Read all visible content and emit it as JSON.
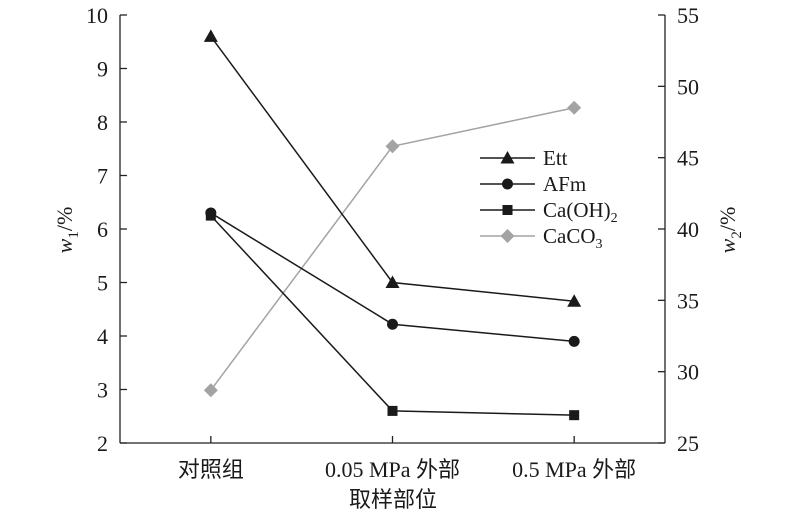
{
  "chart_data": {
    "type": "line",
    "categories": [
      "对照组",
      "0.05 MPa 外部",
      "0.5 MPa 外部"
    ],
    "xlabel": "取样部位",
    "ylabel_left": {
      "var": "w",
      "sub": "1",
      "unit": "/%"
    },
    "ylabel_right": {
      "var": "w",
      "sub": "2",
      "unit": "/%"
    },
    "ylim_left": [
      2,
      10
    ],
    "yticks_left": [
      2,
      3,
      4,
      5,
      6,
      7,
      8,
      9,
      10
    ],
    "ylim_right": [
      25,
      55
    ],
    "yticks_right": [
      25,
      30,
      35,
      40,
      45,
      50,
      55
    ],
    "grid": false,
    "legend_position": "center-right",
    "series": [
      {
        "name": "Ett",
        "axis": "left",
        "marker": "triangle",
        "color": "#1a1a1a",
        "values": [
          9.6,
          5.0,
          4.65
        ]
      },
      {
        "name": "AFm",
        "axis": "left",
        "marker": "circle",
        "color": "#1a1a1a",
        "values": [
          6.3,
          4.22,
          3.9
        ]
      },
      {
        "name": "Ca(OH)",
        "name_sub": "2",
        "axis": "left",
        "marker": "square",
        "color": "#1a1a1a",
        "values": [
          6.25,
          2.6,
          2.52
        ]
      },
      {
        "name": "CaCO",
        "name_sub": "3",
        "axis": "right",
        "marker": "diamond",
        "color": "#a3a3a3",
        "values": [
          28.7,
          45.8,
          48.5
        ]
      }
    ]
  }
}
